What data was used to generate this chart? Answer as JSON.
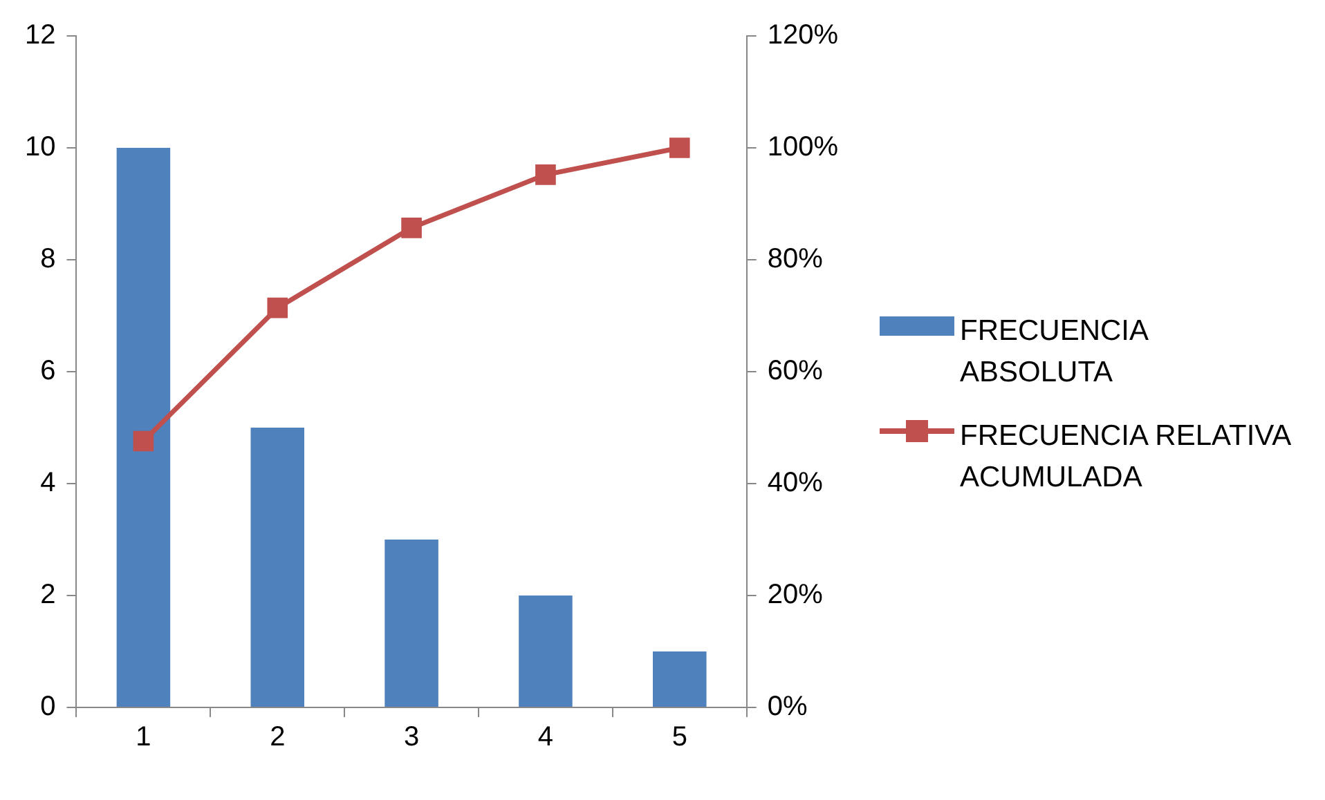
{
  "chart_data": {
    "type": "bar",
    "categories": [
      "1",
      "2",
      "3",
      "4",
      "5"
    ],
    "series": [
      {
        "name": "FRECUENCIA ABSOLUTA",
        "color": "#4f81bd",
        "values": [
          10,
          5,
          3,
          2,
          1
        ]
      },
      {
        "name": "FRECUENCIA RELATIVA ACUMULADA",
        "type": "line",
        "axis": "y2",
        "color": "#c0504d",
        "values": [
          47.6,
          71.4,
          85.7,
          95.2,
          100
        ]
      }
    ],
    "ylim": [
      0,
      12
    ],
    "yticks": [
      0,
      2,
      4,
      6,
      8,
      10,
      12
    ],
    "y2lim": [
      0,
      120
    ],
    "y2ticks": [
      {
        "value": 0,
        "label": "0%"
      },
      {
        "value": 20,
        "label": "20%"
      },
      {
        "value": 40,
        "label": "40%"
      },
      {
        "value": 60,
        "label": "60%"
      },
      {
        "value": 80,
        "label": "80%"
      },
      {
        "value": 100,
        "label": "100%"
      },
      {
        "value": 120,
        "label": "120%"
      }
    ],
    "grid": false,
    "legend": "right",
    "marker": "square",
    "line_style": "solid"
  }
}
